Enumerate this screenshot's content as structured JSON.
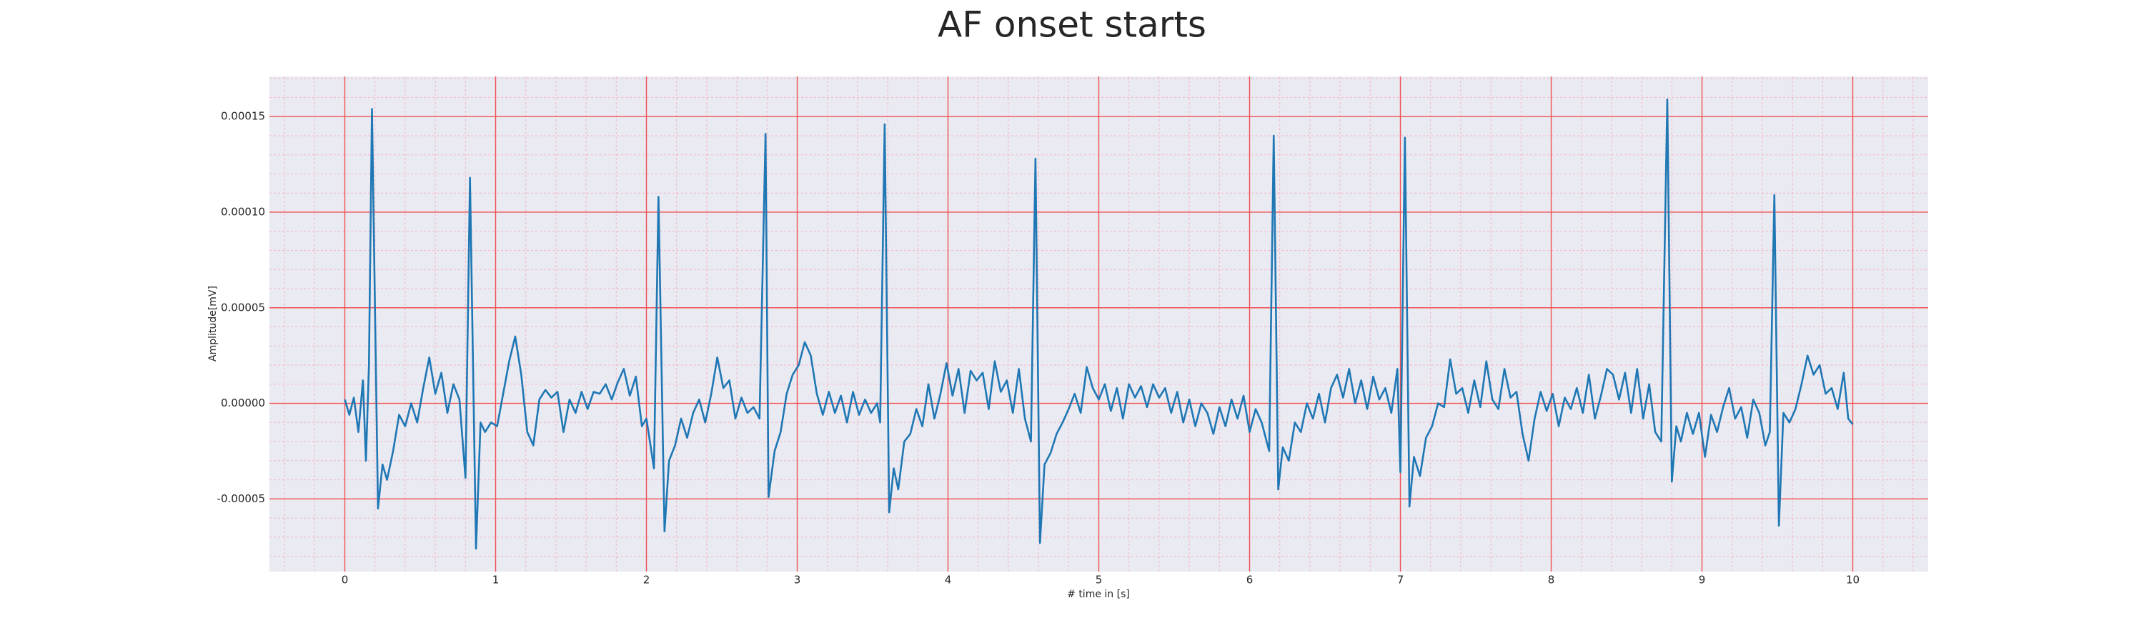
{
  "chart_data": {
    "type": "line",
    "title": "AF onset starts",
    "x_label": "# time in [s]",
    "y_label": "Amplitude[mV]",
    "color": "#1f77b4",
    "grid": true,
    "minor_grid": true,
    "xlim": [
      -0.5,
      10.5
    ],
    "ylim": [
      -8.8e-05,
      0.000171
    ],
    "xticks": [
      0,
      1,
      2,
      3,
      4,
      5,
      6,
      7,
      8,
      9,
      10
    ],
    "yticks": [
      {
        "value": -5e-05,
        "label": "-0.00005"
      },
      {
        "value": 0,
        "label": "0.00000"
      },
      {
        "value": 5e-05,
        "label": "0.00005"
      },
      {
        "value": 0.0001,
        "label": "0.00010"
      },
      {
        "value": 0.00015,
        "label": "0.00015"
      }
    ],
    "x": [
      0.0,
      0.03,
      0.06,
      0.09,
      0.12,
      0.14,
      0.16,
      0.18,
      0.22,
      0.25,
      0.28,
      0.32,
      0.36,
      0.4,
      0.44,
      0.48,
      0.52,
      0.56,
      0.6,
      0.64,
      0.68,
      0.72,
      0.76,
      0.8,
      0.83,
      0.87,
      0.9,
      0.93,
      0.97,
      1.01,
      1.05,
      1.09,
      1.13,
      1.17,
      1.21,
      1.25,
      1.29,
      1.33,
      1.37,
      1.41,
      1.45,
      1.49,
      1.53,
      1.57,
      1.61,
      1.65,
      1.69,
      1.73,
      1.77,
      1.81,
      1.85,
      1.89,
      1.93,
      1.97,
      2.0,
      2.05,
      2.08,
      2.12,
      2.15,
      2.19,
      2.23,
      2.27,
      2.31,
      2.35,
      2.39,
      2.43,
      2.47,
      2.51,
      2.55,
      2.59,
      2.63,
      2.67,
      2.71,
      2.75,
      2.79,
      2.81,
      2.85,
      2.89,
      2.93,
      2.97,
      3.01,
      3.05,
      3.09,
      3.13,
      3.17,
      3.21,
      3.25,
      3.29,
      3.33,
      3.37,
      3.41,
      3.45,
      3.49,
      3.53,
      3.55,
      3.58,
      3.61,
      3.64,
      3.67,
      3.71,
      3.75,
      3.79,
      3.83,
      3.87,
      3.91,
      3.95,
      3.99,
      4.03,
      4.07,
      4.11,
      4.15,
      4.19,
      4.23,
      4.27,
      4.31,
      4.35,
      4.39,
      4.43,
      4.47,
      4.51,
      4.55,
      4.58,
      4.61,
      4.64,
      4.68,
      4.72,
      4.76,
      4.8,
      4.84,
      4.88,
      4.92,
      4.96,
      5.0,
      5.04,
      5.08,
      5.12,
      5.16,
      5.2,
      5.24,
      5.28,
      5.32,
      5.36,
      5.4,
      5.44,
      5.48,
      5.52,
      5.56,
      5.6,
      5.64,
      5.68,
      5.72,
      5.76,
      5.8,
      5.84,
      5.88,
      5.92,
      5.96,
      6.0,
      6.04,
      6.08,
      6.13,
      6.16,
      6.19,
      6.22,
      6.26,
      6.3,
      6.34,
      6.38,
      6.42,
      6.46,
      6.5,
      6.54,
      6.58,
      6.62,
      6.66,
      6.7,
      6.74,
      6.78,
      6.82,
      6.86,
      6.9,
      6.94,
      6.98,
      7.0,
      7.03,
      7.06,
      7.09,
      7.13,
      7.17,
      7.21,
      7.25,
      7.29,
      7.33,
      7.37,
      7.41,
      7.45,
      7.49,
      7.53,
      7.57,
      7.61,
      7.65,
      7.69,
      7.73,
      7.77,
      7.81,
      7.85,
      7.89,
      7.93,
      7.97,
      8.01,
      8.05,
      8.09,
      8.13,
      8.17,
      8.21,
      8.25,
      8.29,
      8.33,
      8.37,
      8.41,
      8.45,
      8.49,
      8.53,
      8.57,
      8.61,
      8.65,
      8.69,
      8.73,
      8.77,
      8.8,
      8.83,
      8.86,
      8.9,
      8.94,
      8.98,
      9.02,
      9.06,
      9.1,
      9.14,
      9.18,
      9.22,
      9.26,
      9.3,
      9.34,
      9.38,
      9.42,
      9.45,
      9.48,
      9.51,
      9.54,
      9.58,
      9.62,
      9.66,
      9.7,
      9.74,
      9.78,
      9.82,
      9.86,
      9.9,
      9.94,
      9.97,
      10.0
    ],
    "values": [
      2e-06,
      -6e-06,
      3e-06,
      -1.5e-05,
      1.2e-05,
      -3e-05,
      2e-05,
      0.000154,
      -5.5e-05,
      -3.2e-05,
      -4e-05,
      -2.5e-05,
      -6e-06,
      -1.2e-05,
      0.0,
      -1e-05,
      8e-06,
      2.4e-05,
      5e-06,
      1.6e-05,
      -5e-06,
      1e-05,
      2e-06,
      -3.9e-05,
      0.000118,
      -7.6e-05,
      -1e-05,
      -1.5e-05,
      -1e-05,
      -1.2e-05,
      5e-06,
      2.2e-05,
      3.5e-05,
      1.5e-05,
      -1.5e-05,
      -2.2e-05,
      2e-06,
      7e-06,
      3e-06,
      6e-06,
      -1.5e-05,
      2e-06,
      -5e-06,
      6e-06,
      -3e-06,
      6e-06,
      5e-06,
      1e-05,
      2e-06,
      1.1e-05,
      1.8e-05,
      4e-06,
      1.4e-05,
      -1.2e-05,
      -8e-06,
      -3.4e-05,
      0.000108,
      -6.7e-05,
      -3e-05,
      -2.2e-05,
      -8e-06,
      -1.8e-05,
      -5e-06,
      2e-06,
      -1e-05,
      5e-06,
      2.4e-05,
      8e-06,
      1.2e-05,
      -8e-06,
      3e-06,
      -5e-06,
      -2e-06,
      -8e-06,
      0.000141,
      -4.9e-05,
      -2.5e-05,
      -1.5e-05,
      5e-06,
      1.5e-05,
      2e-05,
      3.2e-05,
      2.5e-05,
      5e-06,
      -6e-06,
      6e-06,
      -5e-06,
      4e-06,
      -1e-05,
      6e-06,
      -6e-06,
      2e-06,
      -5e-06,
      0.0,
      -1e-05,
      0.000146,
      -5.7e-05,
      -3.4e-05,
      -4.5e-05,
      -2e-05,
      -1.6e-05,
      -3e-06,
      -1.2e-05,
      1e-05,
      -8e-06,
      5e-06,
      2.1e-05,
      4e-06,
      1.8e-05,
      -5e-06,
      1.7e-05,
      1.2e-05,
      1.6e-05,
      -3e-06,
      2.2e-05,
      6e-06,
      1.2e-05,
      -5e-06,
      1.8e-05,
      -8e-06,
      -2e-05,
      0.000128,
      -7.3e-05,
      -3.2e-05,
      -2.6e-05,
      -1.6e-05,
      -1e-05,
      -3e-06,
      5e-06,
      -5e-06,
      1.9e-05,
      8e-06,
      2e-06,
      1e-05,
      -4e-06,
      8e-06,
      -8e-06,
      1e-05,
      3e-06,
      9e-06,
      -2e-06,
      1e-05,
      3e-06,
      8e-06,
      -5e-06,
      6e-06,
      -1e-05,
      2e-06,
      -1.2e-05,
      0.0,
      -5e-06,
      -1.6e-05,
      -2e-06,
      -1.2e-05,
      2e-06,
      -8e-06,
      4e-06,
      -1.5e-05,
      -3e-06,
      -1e-05,
      -2.5e-05,
      0.00014,
      -4.5e-05,
      -2.3e-05,
      -3e-05,
      -1e-05,
      -1.5e-05,
      0.0,
      -8e-06,
      5e-06,
      -1e-05,
      8e-06,
      1.5e-05,
      3e-06,
      1.8e-05,
      0.0,
      1.2e-05,
      -3e-06,
      1.4e-05,
      2e-06,
      8e-06,
      -5e-06,
      1.8e-05,
      -3.6e-05,
      0.000139,
      -5.4e-05,
      -2.8e-05,
      -3.8e-05,
      -1.8e-05,
      -1.2e-05,
      0.0,
      -2e-06,
      2.3e-05,
      5e-06,
      8e-06,
      -5e-06,
      1.2e-05,
      -2e-06,
      2.2e-05,
      2e-06,
      -3e-06,
      1.8e-05,
      3e-06,
      6e-06,
      -1.6e-05,
      -3e-05,
      -8e-06,
      6e-06,
      -4e-06,
      5e-06,
      -1.2e-05,
      3e-06,
      -3e-06,
      8e-06,
      -5e-06,
      1.5e-05,
      -8e-06,
      4e-06,
      1.8e-05,
      1.5e-05,
      2e-06,
      1.6e-05,
      -5e-06,
      1.8e-05,
      -8e-06,
      1e-05,
      -1.5e-05,
      -2e-05,
      0.000159,
      -4.1e-05,
      -1.2e-05,
      -2e-05,
      -5e-06,
      -1.6e-05,
      -5e-06,
      -2.8e-05,
      -6e-06,
      -1.5e-05,
      -2e-06,
      8e-06,
      -8e-06,
      -2e-06,
      -1.8e-05,
      2e-06,
      -5e-06,
      -2.2e-05,
      -1.5e-05,
      0.000109,
      -6.4e-05,
      -5e-06,
      -1e-05,
      -3e-06,
      1e-05,
      2.5e-05,
      1.5e-05,
      2e-05,
      5e-06,
      8e-06,
      -3e-06,
      1.6e-05,
      -8e-06,
      -1.1e-05
    ]
  }
}
